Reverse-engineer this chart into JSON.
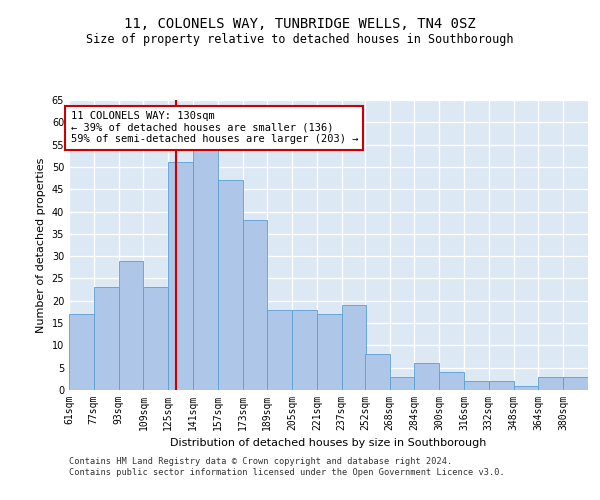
{
  "title": "11, COLONELS WAY, TUNBRIDGE WELLS, TN4 0SZ",
  "subtitle": "Size of property relative to detached houses in Southborough",
  "xlabel": "Distribution of detached houses by size in Southborough",
  "ylabel": "Number of detached properties",
  "bin_labels": [
    "61sqm",
    "77sqm",
    "93sqm",
    "109sqm",
    "125sqm",
    "141sqm",
    "157sqm",
    "173sqm",
    "189sqm",
    "205sqm",
    "221sqm",
    "237sqm",
    "252sqm",
    "268sqm",
    "284sqm",
    "300sqm",
    "316sqm",
    "332sqm",
    "348sqm",
    "364sqm",
    "380sqm"
  ],
  "bin_edges": [
    61,
    77,
    93,
    109,
    125,
    141,
    157,
    173,
    189,
    205,
    221,
    237,
    252,
    268,
    284,
    300,
    316,
    332,
    348,
    364,
    380,
    396
  ],
  "bar_heights": [
    17,
    23,
    29,
    23,
    51,
    54,
    47,
    38,
    18,
    18,
    17,
    19,
    8,
    3,
    6,
    4,
    2,
    2,
    1,
    3,
    3
  ],
  "bar_color": "#aec6e8",
  "bar_edge_color": "#5a9fd4",
  "property_line_x": 130,
  "property_line_color": "#cc0000",
  "annotation_text": "11 COLONELS WAY: 130sqm\n← 39% of detached houses are smaller (136)\n59% of semi-detached houses are larger (203) →",
  "annotation_box_color": "#ffffff",
  "annotation_box_edge_color": "#cc0000",
  "ylim": [
    0,
    65
  ],
  "yticks": [
    0,
    5,
    10,
    15,
    20,
    25,
    30,
    35,
    40,
    45,
    50,
    55,
    60,
    65
  ],
  "background_color": "#dde8f5",
  "grid_color": "#ffffff",
  "footer_text": "Contains HM Land Registry data © Crown copyright and database right 2024.\nContains public sector information licensed under the Open Government Licence v3.0.",
  "title_fontsize": 10,
  "subtitle_fontsize": 8.5,
  "xlabel_fontsize": 8,
  "ylabel_fontsize": 8,
  "tick_fontsize": 7,
  "annotation_fontsize": 7.5,
  "footer_fontsize": 6.2
}
